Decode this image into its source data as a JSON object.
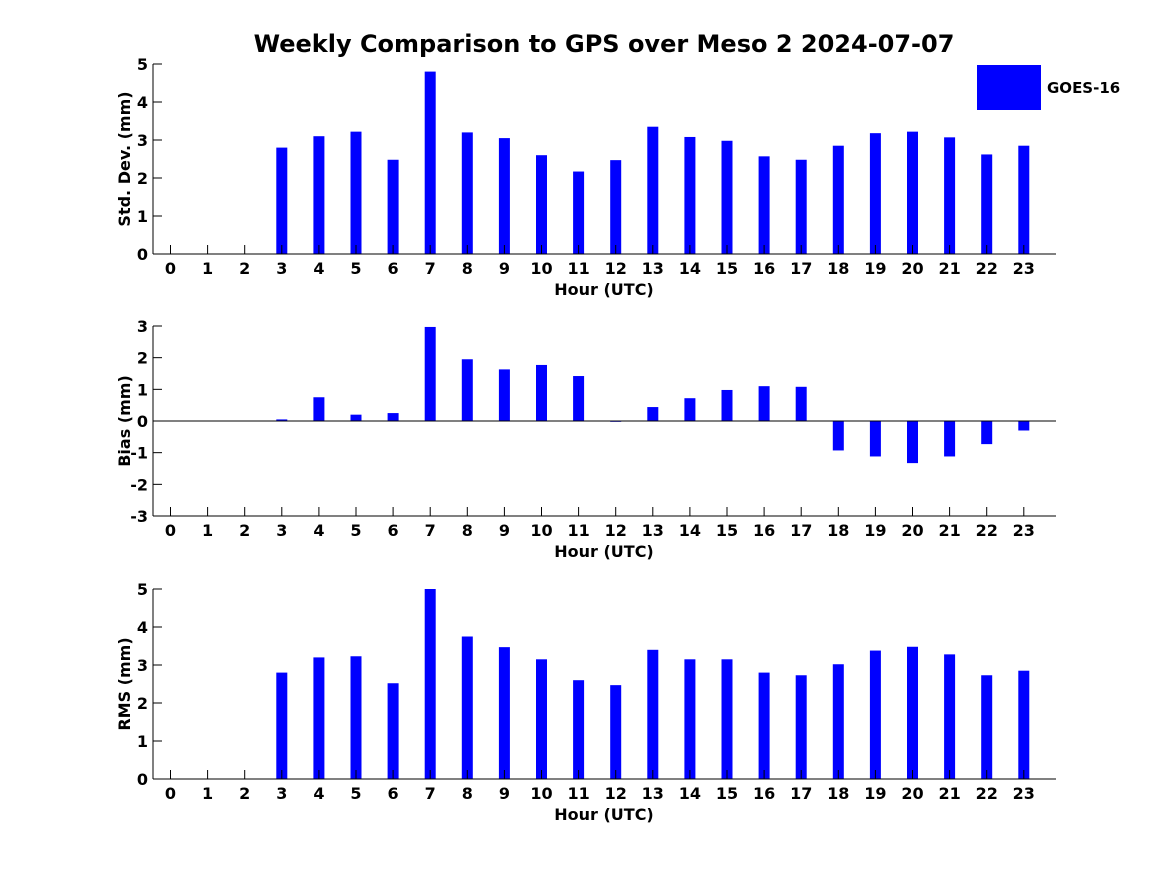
{
  "title": "Weekly Comparison to GPS over Meso 2 2024-07-07",
  "legend": {
    "label": "GOES-16",
    "color": "#0000ff"
  },
  "colors": {
    "bar": "#0000ff",
    "axis": "#000000",
    "background": "#ffffff"
  },
  "chart_data": [
    {
      "type": "bar",
      "ylabel": "Std. Dev. (mm)",
      "xlabel": "Hour (UTC)",
      "ylim": [
        0,
        5
      ],
      "yticks": [
        0,
        1,
        2,
        3,
        4,
        5
      ],
      "categories": [
        "0",
        "1",
        "2",
        "3",
        "4",
        "5",
        "6",
        "7",
        "8",
        "9",
        "10",
        "11",
        "12",
        "13",
        "14",
        "15",
        "16",
        "17",
        "18",
        "19",
        "20",
        "21",
        "22",
        "23"
      ],
      "series": [
        {
          "name": "GOES-16",
          "values": [
            null,
            null,
            null,
            2.8,
            3.1,
            3.22,
            2.48,
            4.8,
            3.2,
            3.05,
            2.6,
            2.17,
            2.47,
            3.35,
            3.08,
            2.98,
            2.57,
            2.48,
            2.85,
            3.18,
            3.22,
            3.07,
            2.62,
            2.85
          ]
        }
      ]
    },
    {
      "type": "bar",
      "ylabel": "Bias (mm)",
      "xlabel": "Hour (UTC)",
      "ylim": [
        -3,
        3
      ],
      "yticks": [
        -3,
        -2,
        -1,
        0,
        1,
        2,
        3
      ],
      "categories": [
        "0",
        "1",
        "2",
        "3",
        "4",
        "5",
        "6",
        "7",
        "8",
        "9",
        "10",
        "11",
        "12",
        "13",
        "14",
        "15",
        "16",
        "17",
        "18",
        "19",
        "20",
        "21",
        "22",
        "23"
      ],
      "series": [
        {
          "name": "GOES-16",
          "values": [
            null,
            null,
            null,
            0.05,
            0.75,
            0.2,
            0.25,
            2.97,
            1.95,
            1.63,
            1.77,
            1.42,
            0.0,
            0.44,
            0.72,
            0.98,
            1.1,
            1.08,
            -0.93,
            -1.12,
            -1.33,
            -1.12,
            -0.73,
            -0.3
          ]
        }
      ]
    },
    {
      "type": "bar",
      "ylabel": "RMS (mm)",
      "xlabel": "Hour (UTC)",
      "ylim": [
        0,
        5
      ],
      "yticks": [
        0,
        1,
        2,
        3,
        4,
        5
      ],
      "categories": [
        "0",
        "1",
        "2",
        "3",
        "4",
        "5",
        "6",
        "7",
        "8",
        "9",
        "10",
        "11",
        "12",
        "13",
        "14",
        "15",
        "16",
        "17",
        "18",
        "19",
        "20",
        "21",
        "22",
        "23"
      ],
      "series": [
        {
          "name": "GOES-16",
          "values": [
            null,
            null,
            null,
            2.8,
            3.2,
            3.23,
            2.52,
            5.0,
            3.75,
            3.47,
            3.15,
            2.6,
            2.47,
            3.4,
            3.15,
            3.15,
            2.8,
            2.73,
            3.02,
            3.38,
            3.48,
            3.28,
            2.73,
            2.85
          ]
        }
      ]
    }
  ]
}
